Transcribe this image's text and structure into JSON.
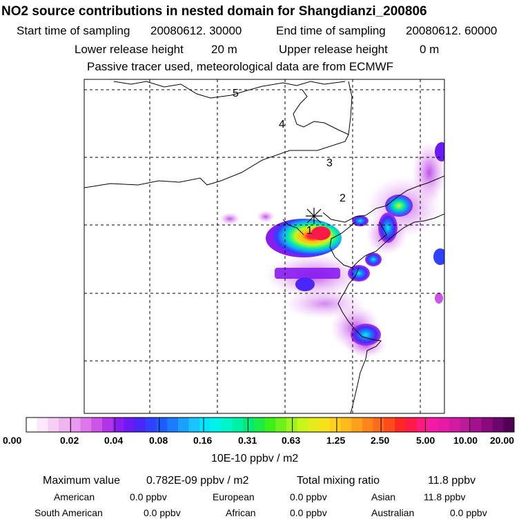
{
  "header": {
    "title": "NO2 source contributions in nested domain for Shangdianzi_200806",
    "start_label": "Start time of sampling",
    "start_value": "20080612. 30000",
    "end_label": "End time of sampling",
    "end_value": "20080612. 60000",
    "lower_label": "Lower release height",
    "lower_value": "20 m",
    "upper_label": "Upper release height",
    "upper_value": "0 m",
    "note": "Passive tracer used, meteorological data are from ECMWF"
  },
  "chart_data": {
    "type": "heatmap",
    "title": "NO2 source contributions in nested domain for Shangdianzi_200806",
    "map_labels": [
      "1",
      "2",
      "3",
      "4",
      "5"
    ],
    "max_value": "0.782E-09",
    "units": "10E-10 ppbv / m2",
    "colorbar": {
      "tick_labels": [
        "0.00",
        "0.02",
        "0.04",
        "0.08",
        "0.16",
        "0.31",
        "0.63",
        "1.25",
        "2.50",
        "5.00",
        "10.00",
        "20.00"
      ],
      "colors": [
        "#ffffff",
        "#fbe8fb",
        "#f5cef5",
        "#eeb4ee",
        "#e899f0",
        "#dd77ea",
        "#cc55e8",
        "#b333e6",
        "#8a1cf0",
        "#6a1af5",
        "#4a26f8",
        "#3040ff",
        "#1f5cff",
        "#1a7dff",
        "#1aa0ff",
        "#1ac4ff",
        "#00e6ff",
        "#00f2e6",
        "#00f5c8",
        "#00f0a4",
        "#00ec7a",
        "#1aec48",
        "#3cf01a",
        "#6cf21a",
        "#9ef51a",
        "#c8f51a",
        "#e6ec1a",
        "#f5e21a",
        "#ffd11a",
        "#ffbb1a",
        "#ffa01a",
        "#ff851a",
        "#ff6a1a",
        "#ff4b1a",
        "#ff2626",
        "#ff1a4a",
        "#ff1a80",
        "#f51aa6",
        "#e61aa6",
        "#d01aa0",
        "#bb1a99",
        "#a5108e",
        "#8a0a7e",
        "#6e056c",
        "#520054"
      ]
    },
    "hotspots": [
      {
        "cx": 0.75,
        "cy": 0.78,
        "level": 0.38
      },
      {
        "cx": 0.55,
        "cy": 0.76,
        "level": 0.25
      }
    ]
  },
  "stats": {
    "max_label": "Maximum value",
    "max_value": "0.782E-09 ppbv / m2",
    "total_label": "Total mixing ratio",
    "total_value": "11.8 ppbv",
    "regions": [
      {
        "name": "American",
        "value": "0.0 ppbv"
      },
      {
        "name": "European",
        "value": "0.0 ppbv"
      },
      {
        "name": "Asian",
        "value": "11.8 ppbv"
      },
      {
        "name": "South American",
        "value": "0.0 ppbv"
      },
      {
        "name": "African",
        "value": "0.0 ppbv"
      },
      {
        "name": "Australian",
        "value": "0.0 ppbv"
      }
    ]
  }
}
